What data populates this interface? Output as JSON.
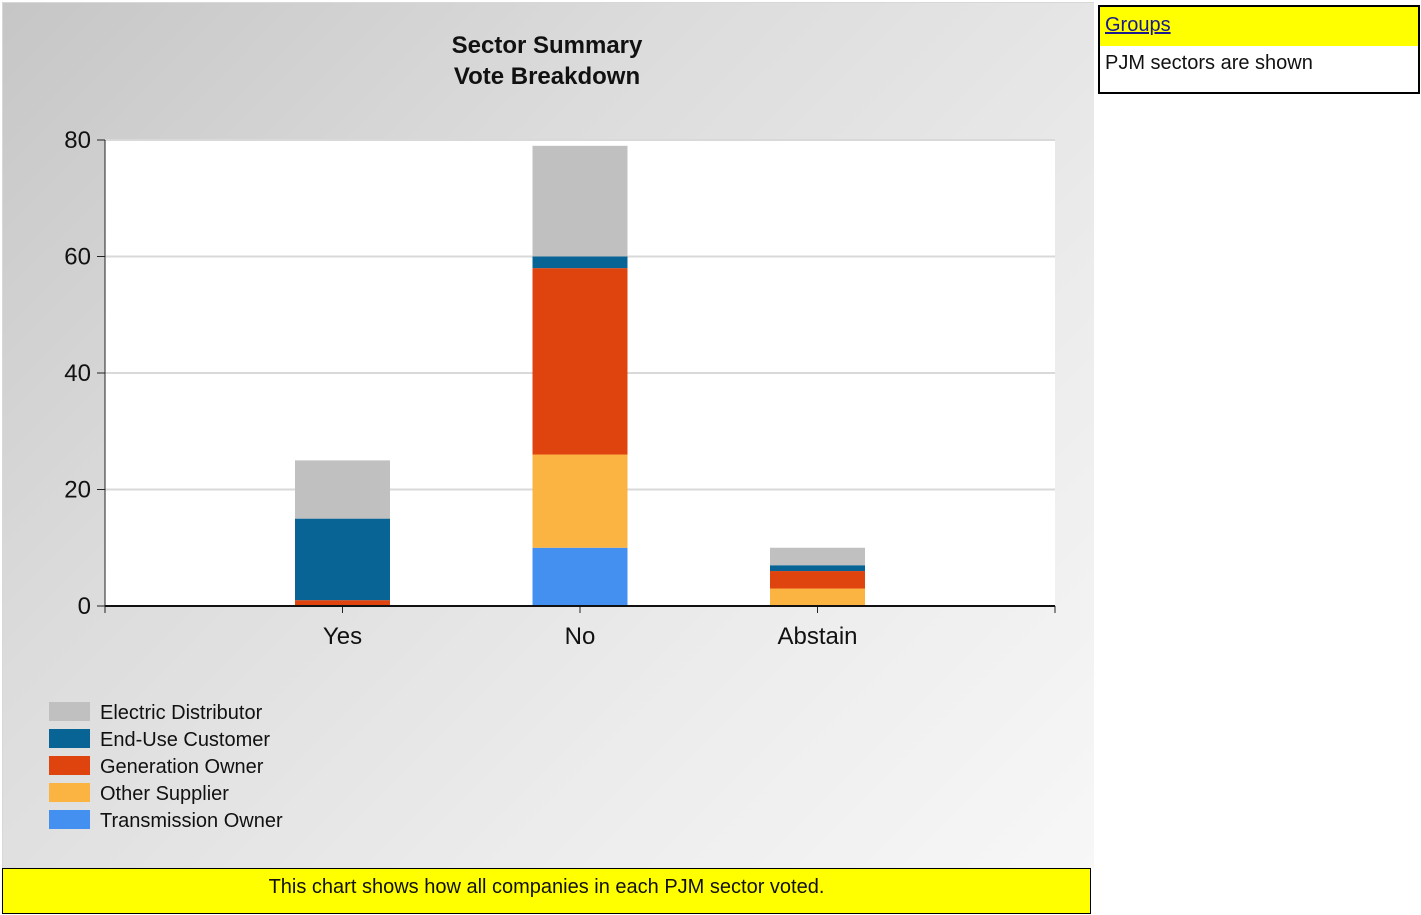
{
  "chart_data": {
    "type": "bar",
    "stacked": true,
    "title": "Sector Summary",
    "subtitle": "Vote Breakdown",
    "xlabel": "",
    "ylabel": "",
    "categories": [
      "Yes",
      "No",
      "Abstain"
    ],
    "ylim": [
      0,
      80
    ],
    "yticks": [
      0,
      20,
      40,
      60,
      80
    ],
    "grid": true,
    "legend_position": "bottom-left",
    "series": [
      {
        "name": "Transmission Owner",
        "color": "#4490f0",
        "values": [
          0,
          10,
          0
        ]
      },
      {
        "name": "Other Supplier",
        "color": "#fbb442",
        "values": [
          0,
          16,
          3
        ]
      },
      {
        "name": "Generation Owner",
        "color": "#e0440e",
        "values": [
          1,
          32,
          3
        ]
      },
      {
        "name": "End-Use Customer",
        "color": "#086494",
        "values": [
          14,
          2,
          1
        ]
      },
      {
        "name": "Electric Distributor",
        "color": "#c0c0c0",
        "values": [
          10,
          19,
          3
        ]
      }
    ],
    "legend_order": [
      "Electric Distributor",
      "End-Use Customer",
      "Generation Owner",
      "Other Supplier",
      "Transmission Owner"
    ]
  },
  "footer": {
    "note": "This chart shows how all companies in each PJM sector voted."
  },
  "groups": {
    "header": "Groups",
    "description": "PJM sectors are shown"
  }
}
